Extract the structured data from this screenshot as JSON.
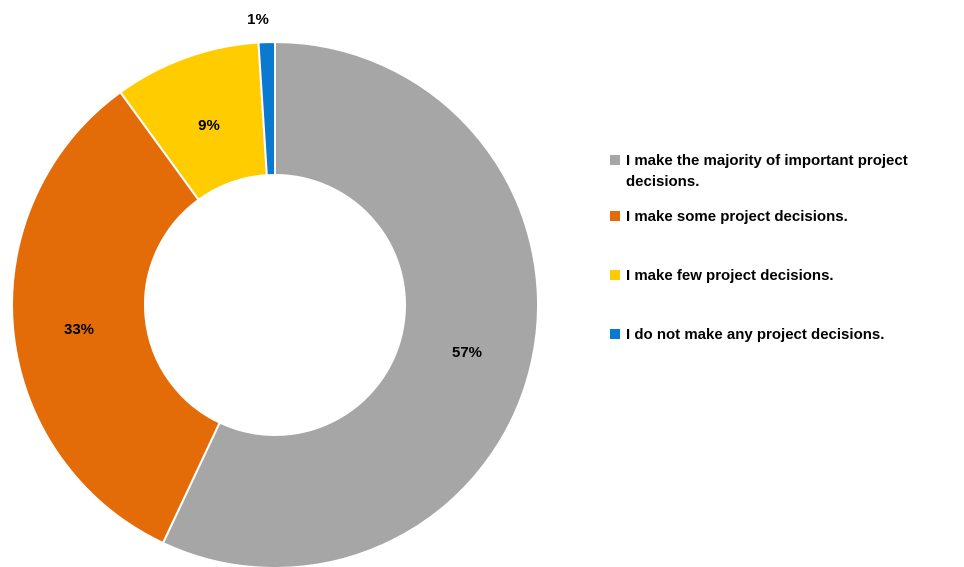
{
  "chart_data": {
    "type": "pie",
    "variant": "donut",
    "title": "",
    "slices": [
      {
        "label": "I make the majority of important project decisions.",
        "value": 57,
        "display": "57%",
        "color": "#a6a6a6"
      },
      {
        "label": "I make some project decisions.",
        "value": 33,
        "display": "33%",
        "color": "#e36c09"
      },
      {
        "label": "I make few project decisions.",
        "value": 9,
        "display": "9%",
        "color": "#ffcc00"
      },
      {
        "label": "I do not make any project decisions.",
        "value": 1,
        "display": "1%",
        "color": "#0a7ad1"
      }
    ],
    "start_angle": "12 o'clock",
    "direction": "clockwise",
    "legend_position": "right"
  }
}
